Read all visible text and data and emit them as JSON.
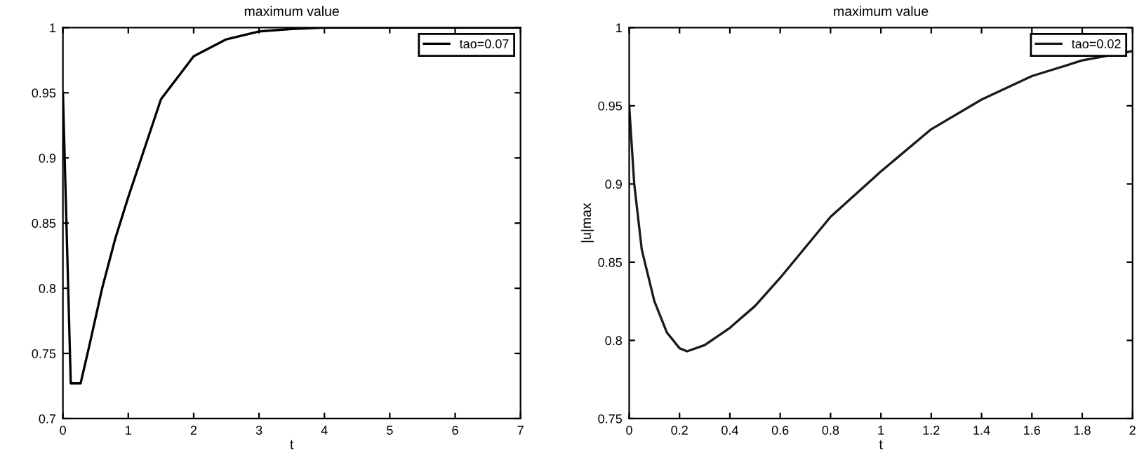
{
  "chart_data": [
    {
      "type": "line",
      "title": "maximum value",
      "xlabel": "t",
      "series": [
        {
          "name": "tao=0.07",
          "color": "#000000",
          "x": [
            0,
            0.12,
            0.27,
            0.4,
            0.6,
            0.8,
            1.0,
            1.2,
            1.5,
            2.0,
            2.5,
            3.0,
            3.5,
            4.0,
            5.0,
            6.0,
            7.0
          ],
          "values": [
            0.95,
            0.727,
            0.727,
            0.755,
            0.8,
            0.838,
            0.87,
            0.9,
            0.945,
            0.978,
            0.991,
            0.997,
            0.999,
            1.0,
            1.0,
            1.0,
            1.0
          ]
        }
      ],
      "xlim": [
        0,
        7
      ],
      "xticks": [
        0,
        1,
        2,
        3,
        4,
        5,
        6,
        7
      ],
      "ylim": [
        0.7,
        1
      ],
      "yticks": [
        0.7,
        0.75,
        0.8,
        0.85,
        0.9,
        0.95,
        1
      ],
      "grid": false,
      "legend": "top right",
      "marker": "none",
      "line_style": "solid"
    },
    {
      "type": "line",
      "title": "maximum value",
      "xlabel": "t",
      "ylabel": "|u|max",
      "series": [
        {
          "name": "tao=0.02",
          "color": "#1a1a1a",
          "x": [
            0,
            0.02,
            0.05,
            0.1,
            0.15,
            0.2,
            0.23,
            0.3,
            0.4,
            0.5,
            0.6,
            0.8,
            1.0,
            1.2,
            1.4,
            1.6,
            1.8,
            2.0
          ],
          "values": [
            0.95,
            0.9,
            0.858,
            0.825,
            0.805,
            0.795,
            0.793,
            0.797,
            0.808,
            0.822,
            0.84,
            0.879,
            0.908,
            0.935,
            0.954,
            0.969,
            0.979,
            0.985
          ]
        }
      ],
      "xlim": [
        0,
        2
      ],
      "xticks": [
        0,
        0.2,
        0.4,
        0.6,
        0.8,
        1,
        1.2,
        1.4,
        1.6,
        1.8,
        2
      ],
      "ylim": [
        0.75,
        1
      ],
      "yticks": [
        0.75,
        0.8,
        0.85,
        0.9,
        0.95,
        1
      ],
      "grid": false,
      "legend": "top right",
      "marker": "none",
      "line_style": "solid"
    }
  ]
}
